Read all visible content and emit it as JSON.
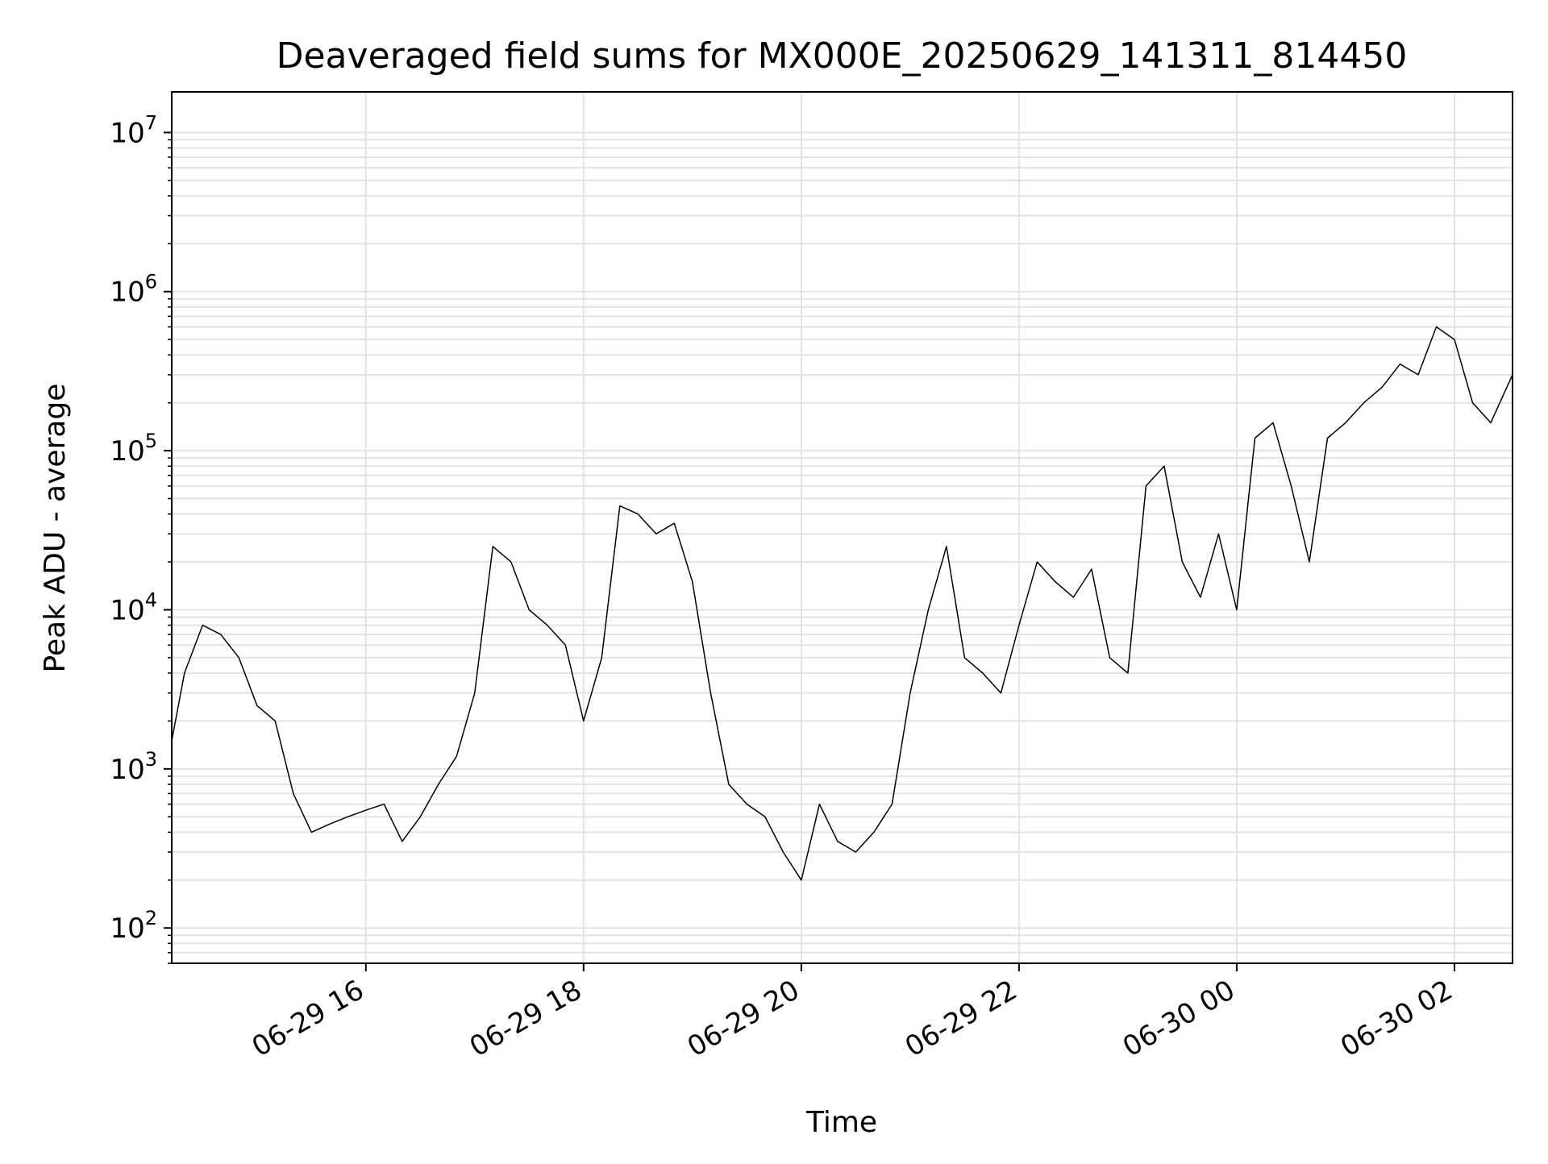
{
  "chart_data": {
    "type": "line",
    "title": "Deaveraged field sums for MX000E_20250629_141311_814450",
    "xlabel": "Time",
    "ylabel": "Peak ADU - average",
    "yscale": "log",
    "ylim": [
      60,
      18000000
    ],
    "xlim": [
      "2025-06-29 14:13",
      "2025-06-30 02:32"
    ],
    "grid": true,
    "line_color": "#000000",
    "x_ticks": [
      {
        "value": "2025-06-29 16:00",
        "label": "06-29 16"
      },
      {
        "value": "2025-06-29 18:00",
        "label": "06-29 18"
      },
      {
        "value": "2025-06-29 20:00",
        "label": "06-29 20"
      },
      {
        "value": "2025-06-29 22:00",
        "label": "06-29 22"
      },
      {
        "value": "2025-06-30 00:00",
        "label": "06-30 00"
      },
      {
        "value": "2025-06-30 02:00",
        "label": "06-30 02"
      }
    ],
    "y_ticks": [
      {
        "value": 100,
        "base": "10",
        "exp": "2"
      },
      {
        "value": 1000,
        "base": "10",
        "exp": "3"
      },
      {
        "value": 10000,
        "base": "10",
        "exp": "4"
      },
      {
        "value": 100000,
        "base": "10",
        "exp": "5"
      },
      {
        "value": 1000000,
        "base": "10",
        "exp": "6"
      },
      {
        "value": 10000000,
        "base": "10",
        "exp": "7"
      }
    ],
    "series": [
      {
        "x": [
          "2025-06-29 14:13",
          "2025-06-29 14:20",
          "2025-06-29 14:30",
          "2025-06-29 14:40",
          "2025-06-29 14:50",
          "2025-06-29 15:00",
          "2025-06-29 15:10",
          "2025-06-29 15:20",
          "2025-06-29 15:30",
          "2025-06-29 15:40",
          "2025-06-29 15:50",
          "2025-06-29 16:00",
          "2025-06-29 16:10",
          "2025-06-29 16:20",
          "2025-06-29 16:30",
          "2025-06-29 16:40",
          "2025-06-29 16:50",
          "2025-06-29 17:00",
          "2025-06-29 17:10",
          "2025-06-29 17:20",
          "2025-06-29 17:30",
          "2025-06-29 17:40",
          "2025-06-29 17:50",
          "2025-06-29 18:00",
          "2025-06-29 18:10",
          "2025-06-29 18:20",
          "2025-06-29 18:30",
          "2025-06-29 18:40",
          "2025-06-29 18:50",
          "2025-06-29 19:00",
          "2025-06-29 19:10",
          "2025-06-29 19:20",
          "2025-06-29 19:30",
          "2025-06-29 19:40",
          "2025-06-29 19:50",
          "2025-06-29 20:00",
          "2025-06-29 20:10",
          "2025-06-29 20:20",
          "2025-06-29 20:30",
          "2025-06-29 20:40",
          "2025-06-29 20:50",
          "2025-06-29 21:00",
          "2025-06-29 21:10",
          "2025-06-29 21:20",
          "2025-06-29 21:30",
          "2025-06-29 21:40",
          "2025-06-29 21:50",
          "2025-06-29 22:00",
          "2025-06-29 22:10",
          "2025-06-29 22:20",
          "2025-06-29 22:30",
          "2025-06-29 22:40",
          "2025-06-29 22:50",
          "2025-06-29 23:00",
          "2025-06-29 23:10",
          "2025-06-29 23:20",
          "2025-06-29 23:30",
          "2025-06-29 23:40",
          "2025-06-29 23:50",
          "2025-06-30 00:00",
          "2025-06-30 00:10",
          "2025-06-30 00:20",
          "2025-06-30 00:30",
          "2025-06-30 00:40",
          "2025-06-30 00:50",
          "2025-06-30 01:00",
          "2025-06-30 01:10",
          "2025-06-30 01:20",
          "2025-06-30 01:30",
          "2025-06-30 01:40",
          "2025-06-30 01:50",
          "2025-06-30 02:00",
          "2025-06-30 02:10",
          "2025-06-30 02:20",
          "2025-06-30 02:32"
        ],
        "y": [
          1500,
          4000,
          8000,
          7000,
          5000,
          2500,
          2000,
          700,
          400,
          450,
          500,
          550,
          600,
          350,
          500,
          800,
          1200,
          3000,
          25000,
          20000,
          10000,
          8000,
          6000,
          2000,
          5000,
          45000,
          40000,
          30000,
          35000,
          15000,
          3000,
          800,
          600,
          500,
          300,
          200,
          600,
          350,
          300,
          400,
          600,
          3000,
          10000,
          25000,
          5000,
          4000,
          3000,
          8000,
          20000,
          15000,
          12000,
          18000,
          5000,
          4000,
          60000,
          80000,
          20000,
          12000,
          30000,
          10000,
          120000,
          150000,
          60000,
          20000,
          120000,
          150000,
          200000,
          250000,
          350000,
          300000,
          600000,
          500000,
          200000,
          150000,
          300000
        ]
      }
    ]
  }
}
